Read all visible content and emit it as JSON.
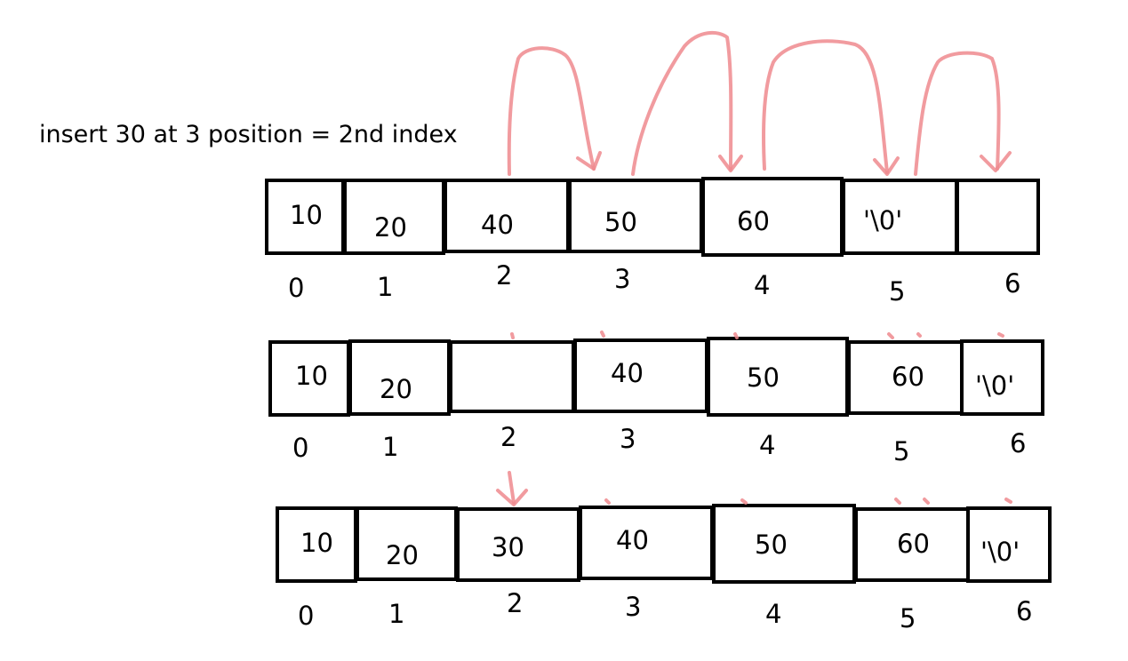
{
  "title": "insert 30 at 3 position = 2nd index",
  "rows": [
    {
      "values": [
        "10",
        "20",
        "40",
        "50",
        "60",
        "'\\0'",
        ""
      ],
      "indices": [
        "0",
        "1",
        "2",
        "3",
        "4",
        "5",
        "6"
      ]
    },
    {
      "values": [
        "10",
        "20",
        "",
        "40",
        "50",
        "60",
        "'\\0'"
      ],
      "indices": [
        "0",
        "1",
        "2",
        "3",
        "4",
        "5",
        "6"
      ]
    },
    {
      "values": [
        "10",
        "20",
        "30",
        "40",
        "50",
        "60",
        "'\\0'"
      ],
      "indices": [
        "0",
        "1",
        "2",
        "3",
        "4",
        "5",
        "6"
      ]
    }
  ],
  "colors": {
    "arrow": "#ef8a8e",
    "border": "#000000"
  }
}
